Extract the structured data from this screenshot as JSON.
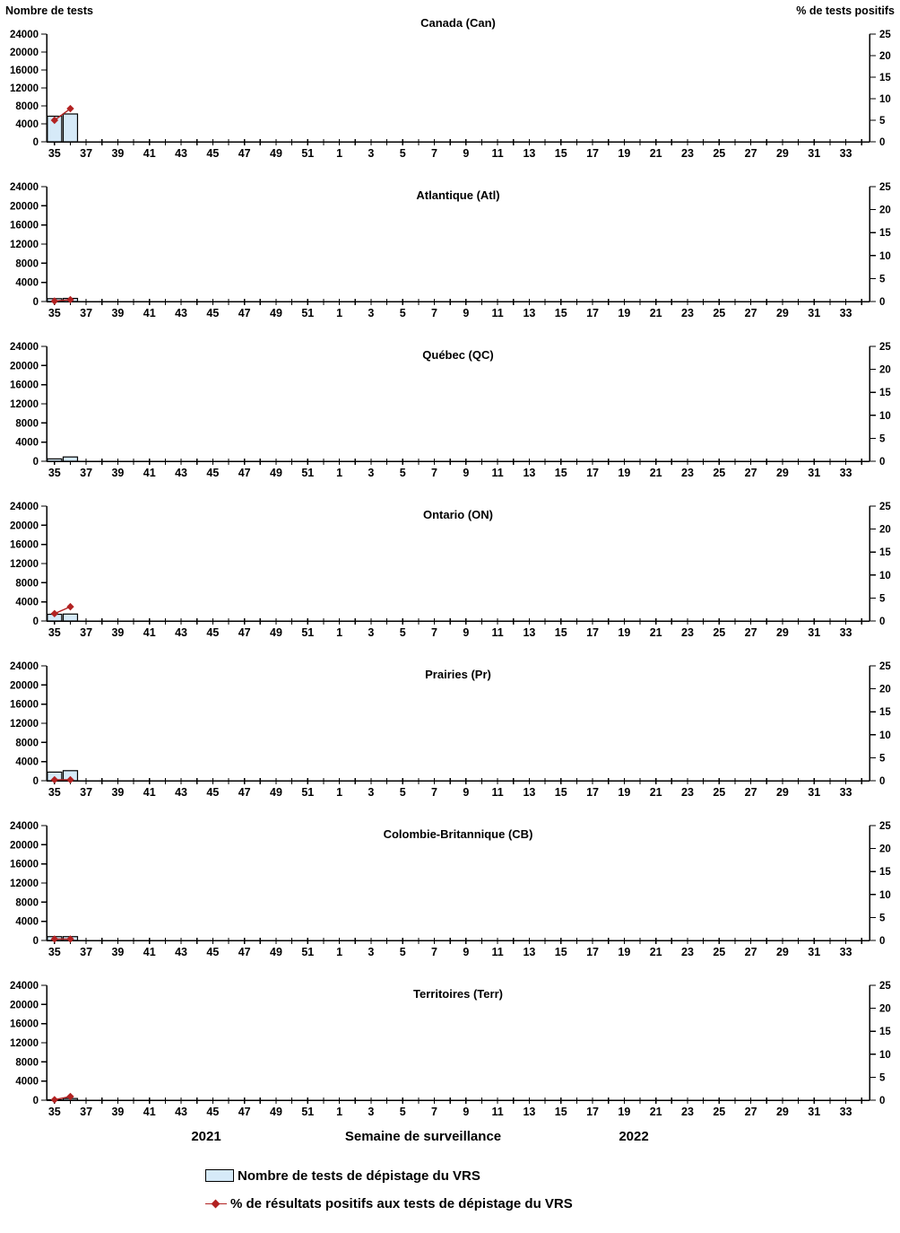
{
  "axes": {
    "left_title": "Nombre de tests",
    "right_title": "% de tests positifs",
    "left_ticks": [
      0,
      4000,
      8000,
      12000,
      16000,
      20000,
      24000
    ],
    "right_ticks": [
      0,
      5,
      10,
      15,
      20,
      25
    ],
    "left_max": 24000,
    "right_max": 25,
    "weeks": [
      35,
      36,
      37,
      38,
      39,
      40,
      41,
      42,
      43,
      44,
      45,
      46,
      47,
      48,
      49,
      50,
      51,
      52,
      1,
      2,
      3,
      4,
      5,
      6,
      7,
      8,
      9,
      10,
      11,
      12,
      13,
      14,
      15,
      16,
      17,
      18,
      19,
      20,
      21,
      22,
      23,
      24,
      25,
      26,
      27,
      28,
      29,
      30,
      31,
      32,
      33,
      34
    ]
  },
  "footer": {
    "year_left": "2021",
    "x_title": "Semaine de surveillance",
    "year_right": "2022"
  },
  "legend": {
    "bar_label": "Nombre de tests de dépistage du VRS",
    "line_label": "% de résultats positifs aux tests de dépistage du VRS"
  },
  "colors": {
    "bar_fill": "#D6EAF8",
    "bar_stroke": "#000000",
    "line": "#B22222",
    "axis": "#000000",
    "background": "#FFFFFF"
  },
  "chart_data": [
    {
      "type": "bar",
      "title": "Canada (Can)",
      "xlabel": "Semaine de surveillance",
      "ylabel_left": "Nombre de tests",
      "ylabel_right": "% de tests positifs",
      "ylim_left": [
        0,
        24000
      ],
      "ylim_right": [
        0,
        25
      ],
      "series": [
        {
          "name": "Nombre de tests de dépistage du VRS",
          "kind": "bar",
          "axis": "left",
          "points": [
            {
              "week": 35,
              "year": 2021,
              "value": 5700
            },
            {
              "week": 36,
              "year": 2021,
              "value": 6200
            }
          ]
        },
        {
          "name": "% de résultats positifs aux tests de dépistage du VRS",
          "kind": "line",
          "axis": "right",
          "points": [
            {
              "week": 35,
              "year": 2021,
              "value": 5.0
            },
            {
              "week": 36,
              "year": 2021,
              "value": 7.7
            }
          ]
        }
      ]
    },
    {
      "type": "bar",
      "title": "Atlantique (Atl)",
      "ylim_left": [
        0,
        24000
      ],
      "ylim_right": [
        0,
        25
      ],
      "series": [
        {
          "name": "Nombre de tests de dépistage du VRS",
          "kind": "bar",
          "axis": "left",
          "points": [
            {
              "week": 35,
              "year": 2021,
              "value": 600
            },
            {
              "week": 36,
              "year": 2021,
              "value": 650
            }
          ]
        },
        {
          "name": "% de résultats positifs aux tests de dépistage du VRS",
          "kind": "line",
          "axis": "right",
          "points": [
            {
              "week": 35,
              "year": 2021,
              "value": 0.1
            },
            {
              "week": 36,
              "year": 2021,
              "value": 0.4
            }
          ]
        }
      ]
    },
    {
      "type": "bar",
      "title": "Québec (QC)",
      "ylim_left": [
        0,
        24000
      ],
      "ylim_right": [
        0,
        25
      ],
      "series": [
        {
          "name": "Nombre de tests de dépistage du VRS",
          "kind": "bar",
          "axis": "left",
          "points": [
            {
              "week": 35,
              "year": 2021,
              "value": 500
            },
            {
              "week": 36,
              "year": 2021,
              "value": 900
            }
          ]
        },
        {
          "name": "% de résultats positifs aux tests de dépistage du VRS",
          "kind": "line",
          "axis": "right",
          "points": []
        }
      ]
    },
    {
      "type": "bar",
      "title": "Ontario (ON)",
      "ylim_left": [
        0,
        24000
      ],
      "ylim_right": [
        0,
        25
      ],
      "series": [
        {
          "name": "Nombre de tests de dépistage du VRS",
          "kind": "bar",
          "axis": "left",
          "points": [
            {
              "week": 35,
              "year": 2021,
              "value": 1400
            },
            {
              "week": 36,
              "year": 2021,
              "value": 1450
            }
          ]
        },
        {
          "name": "% de résultats positifs aux tests de dépistage du VRS",
          "kind": "line",
          "axis": "right",
          "points": [
            {
              "week": 35,
              "year": 2021,
              "value": 1.6
            },
            {
              "week": 36,
              "year": 2021,
              "value": 3.1
            }
          ]
        }
      ]
    },
    {
      "type": "bar",
      "title": "Prairies (Pr)",
      "ylim_left": [
        0,
        24000
      ],
      "ylim_right": [
        0,
        25
      ],
      "series": [
        {
          "name": "Nombre de tests de dépistage du VRS",
          "kind": "bar",
          "axis": "left",
          "points": [
            {
              "week": 35,
              "year": 2021,
              "value": 1800
            },
            {
              "week": 36,
              "year": 2021,
              "value": 2100
            }
          ]
        },
        {
          "name": "% de résultats positifs aux tests de dépistage du VRS",
          "kind": "line",
          "axis": "right",
          "points": [
            {
              "week": 35,
              "year": 2021,
              "value": 0.2
            },
            {
              "week": 36,
              "year": 2021,
              "value": 0.2
            }
          ]
        }
      ]
    },
    {
      "type": "bar",
      "title": "Colombie-Britannique (CB)",
      "ylim_left": [
        0,
        24000
      ],
      "ylim_right": [
        0,
        25
      ],
      "series": [
        {
          "name": "Nombre de tests de dépistage du VRS",
          "kind": "bar",
          "axis": "left",
          "points": [
            {
              "week": 35,
              "year": 2021,
              "value": 800
            },
            {
              "week": 36,
              "year": 2021,
              "value": 800
            }
          ]
        },
        {
          "name": "% de résultats positifs aux tests de dépistage du VRS",
          "kind": "line",
          "axis": "right",
          "points": [
            {
              "week": 35,
              "year": 2021,
              "value": 0.3
            },
            {
              "week": 36,
              "year": 2021,
              "value": 0.3
            }
          ]
        }
      ]
    },
    {
      "type": "bar",
      "title": "Territoires (Terr)",
      "ylim_left": [
        0,
        24000
      ],
      "ylim_right": [
        0,
        25
      ],
      "series": [
        {
          "name": "Nombre de tests de dépistage du VRS",
          "kind": "bar",
          "axis": "left",
          "points": [
            {
              "week": 35,
              "year": 2021,
              "value": 100
            },
            {
              "week": 36,
              "year": 2021,
              "value": 350
            }
          ]
        },
        {
          "name": "% de résultats positifs aux tests de dépistage du VRS",
          "kind": "line",
          "axis": "right",
          "points": [
            {
              "week": 35,
              "year": 2021,
              "value": 0.1
            },
            {
              "week": 36,
              "year": 2021,
              "value": 0.8
            }
          ]
        }
      ]
    }
  ]
}
